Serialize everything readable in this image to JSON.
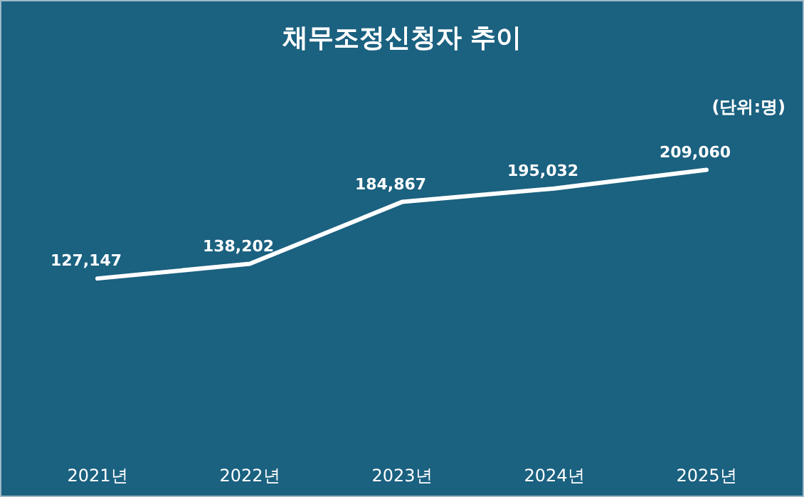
{
  "chart_data": {
    "type": "line",
    "title": "채무조정신청자 추이",
    "annotations": [
      "(단위:명)"
    ],
    "categories": [
      "2021년",
      "2022년",
      "2023년",
      "2024년",
      "2025년"
    ],
    "series": [
      {
        "color": "#ffffff",
        "values": [
          127147,
          138202,
          184867,
          195032,
          209060
        ],
        "value_labels": [
          "127,147",
          "138,202",
          "184,867",
          "195,032",
          "209,060"
        ]
      }
    ],
    "marker": "none",
    "line_style": "solid"
  }
}
